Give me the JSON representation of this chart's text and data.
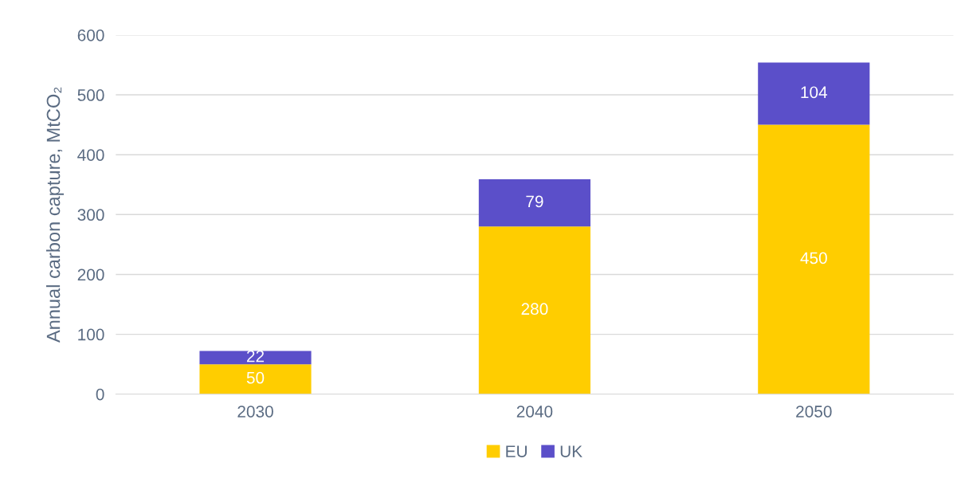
{
  "chart_data": {
    "type": "bar",
    "ylabel": "Annual carbon capture, MtCO₂",
    "categories": [
      "2030",
      "2040",
      "2050"
    ],
    "series": [
      {
        "name": "EU",
        "color": "#ffcd00",
        "values": [
          50,
          280,
          450
        ]
      },
      {
        "name": "UK",
        "color": "#5b4fc9",
        "values": [
          22,
          79,
          104
        ]
      }
    ],
    "stacked": true,
    "ylim": [
      0,
      600
    ],
    "yticks": [
      0,
      100,
      200,
      300,
      400,
      500,
      600
    ],
    "grid": "y",
    "legend": "bottom",
    "data_labels": true
  }
}
